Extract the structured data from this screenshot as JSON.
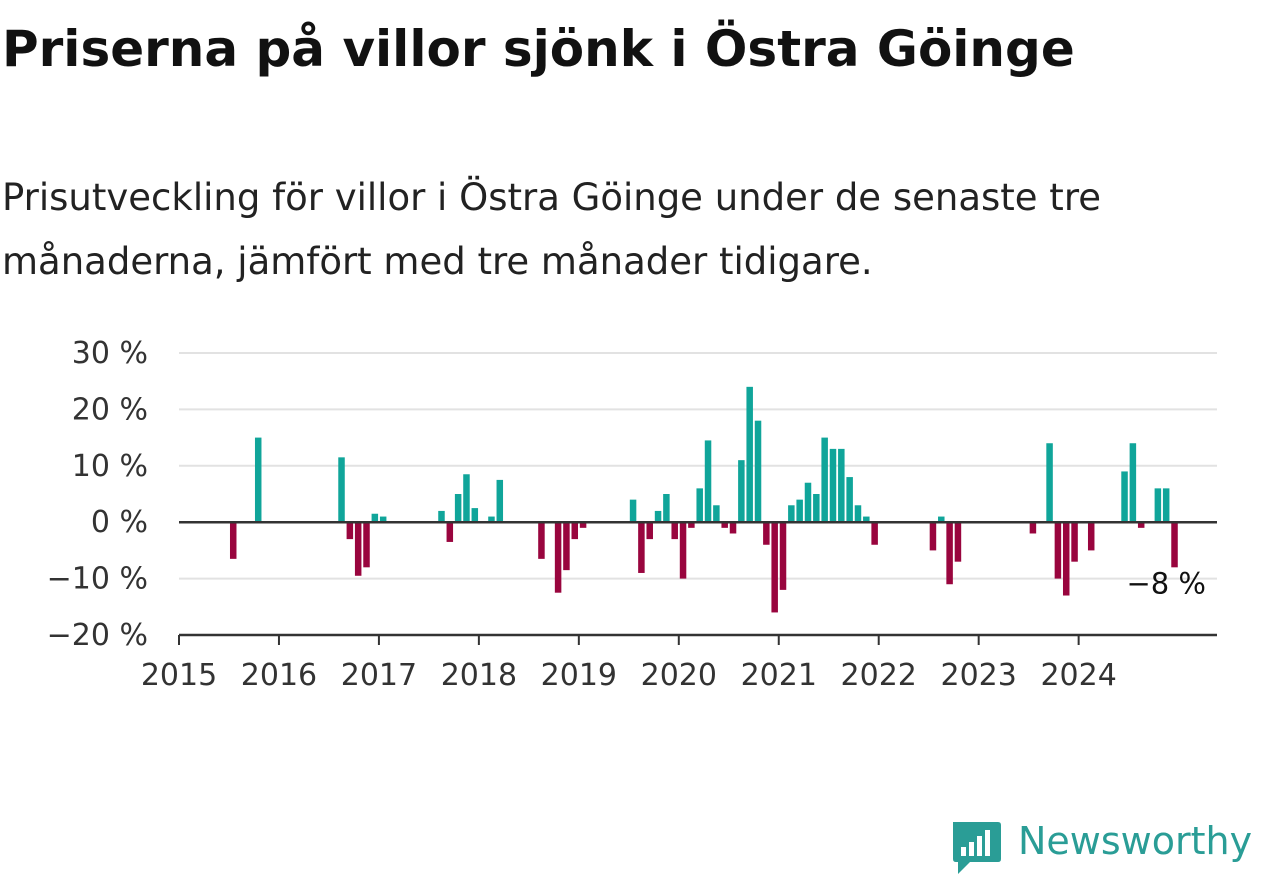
{
  "title": "Priserna på villor sjönk i Östra Göinge",
  "subtitle": "Prisutveckling för villor i Östra Göinge under de senaste tre månaderna, jämfört med tre månader tidigare.",
  "brand": "Newsworthy",
  "colors": {
    "positive": "#10a59a",
    "negative": "#99053e",
    "brand": "#2a9d96"
  },
  "chart_data": {
    "type": "bar",
    "x_unit": "month",
    "start": "2015-01",
    "x_range": [
      "2015-01",
      "2025-06"
    ],
    "ylim": [
      -20,
      30
    ],
    "yticks": [
      30,
      20,
      10,
      0,
      -10,
      -20
    ],
    "ytick_labels": [
      "30 %",
      "20 %",
      "10 %",
      "0 %",
      "−10 %",
      "−20 %"
    ],
    "xticks": [
      "2015",
      "2016",
      "2017",
      "2018",
      "2019",
      "2020",
      "2021",
      "2022",
      "2023",
      "2024"
    ],
    "grid": true,
    "end_label": "−8 %",
    "values": [
      0,
      0,
      0,
      0,
      0,
      0,
      -6.5,
      0,
      0,
      15,
      0,
      0,
      0,
      0,
      0,
      0,
      0,
      0,
      0,
      11.5,
      -3,
      -9.5,
      -8,
      1.5,
      1,
      0,
      0,
      0,
      0,
      0,
      0,
      2,
      -3.5,
      5,
      8.5,
      2.5,
      0,
      1,
      7.5,
      0,
      0,
      0,
      0,
      -6.5,
      0,
      -12.5,
      -8.5,
      -3,
      -1,
      0,
      0,
      0,
      0,
      0,
      4,
      -9,
      -3,
      2,
      5,
      -3,
      -10,
      -1,
      6,
      14.5,
      3,
      -1,
      -2,
      11,
      24,
      18,
      -4,
      -16,
      -12,
      3,
      4,
      7,
      5,
      15,
      13,
      13,
      8,
      3,
      1,
      -4,
      0,
      0,
      0,
      0,
      0,
      0,
      -5,
      1,
      -11,
      -7,
      0,
      0,
      0,
      0,
      0,
      0,
      0,
      0,
      -2,
      0,
      14,
      -10,
      -13,
      -7,
      0,
      -5,
      0,
      0,
      0,
      9,
      14,
      -1,
      0,
      6,
      6,
      -8
    ]
  }
}
